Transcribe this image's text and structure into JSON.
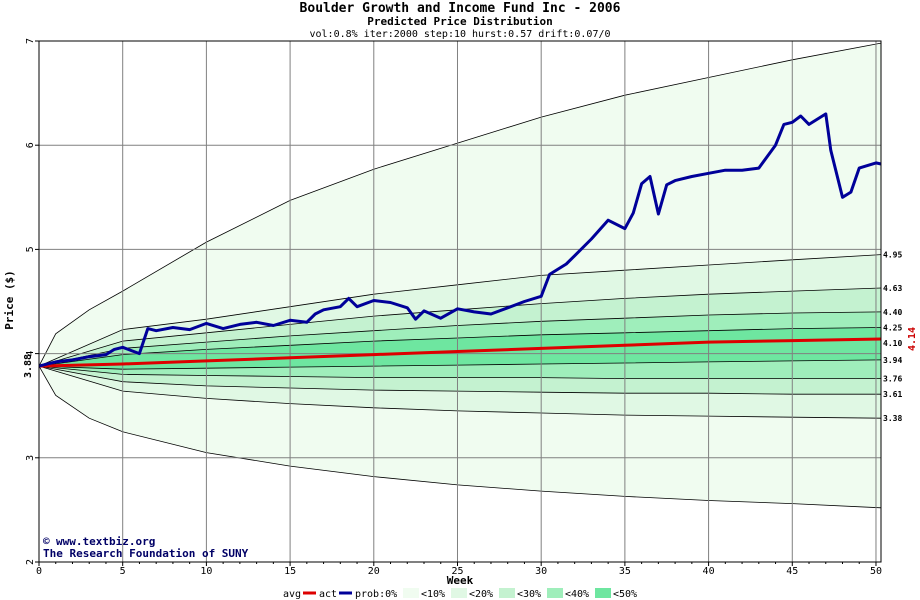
{
  "chart_data": {
    "type": "area",
    "title": "Boulder Growth and Income Fund Inc - 2006",
    "subtitle": "Predicted Price Distribution",
    "params": "vol:0.8% iter:2000 step:10 hurst:0.57 drift:0.07/0",
    "xlabel": "Week",
    "ylabel": "Price ($)",
    "xlim": [
      0,
      50.3
    ],
    "ylim": [
      2,
      7
    ],
    "x_ticks": [
      0,
      5,
      10,
      15,
      20,
      25,
      30,
      35,
      40,
      45,
      50
    ],
    "y_ticks": [
      2,
      3,
      4,
      5,
      6,
      7
    ],
    "grid": true,
    "start_price": "3.88",
    "last_value": "4.14",
    "end_levels": [
      "4.95",
      "4.63",
      "4.40",
      "4.25",
      "4.10",
      "3.94",
      "3.76",
      "3.61",
      "3.38"
    ],
    "bands": [
      {
        "name": "<10%",
        "color": "#f0fcf0",
        "upper": [
          [
            0,
            3.88
          ],
          [
            1,
            4.19
          ],
          [
            3,
            4.42
          ],
          [
            5,
            4.6
          ],
          [
            10,
            5.07
          ],
          [
            15,
            5.47
          ],
          [
            20,
            5.77
          ],
          [
            25,
            6.02
          ],
          [
            30,
            6.27
          ],
          [
            35,
            6.48
          ],
          [
            40,
            6.65
          ],
          [
            45,
            6.82
          ],
          [
            50.3,
            6.98
          ]
        ],
        "lower": [
          [
            0,
            3.88
          ],
          [
            1,
            3.6
          ],
          [
            3,
            3.38
          ],
          [
            5,
            3.25
          ],
          [
            10,
            3.05
          ],
          [
            15,
            2.92
          ],
          [
            20,
            2.82
          ],
          [
            25,
            2.74
          ],
          [
            30,
            2.68
          ],
          [
            35,
            2.63
          ],
          [
            40,
            2.59
          ],
          [
            45,
            2.56
          ],
          [
            50.3,
            2.52
          ]
        ]
      },
      {
        "name": "<20%",
        "color": "#e0f8e4",
        "upper": [
          [
            0,
            3.88
          ],
          [
            5,
            4.23
          ],
          [
            10,
            4.33
          ],
          [
            15,
            4.45
          ],
          [
            20,
            4.57
          ],
          [
            25,
            4.66
          ],
          [
            30,
            4.75
          ],
          [
            35,
            4.8
          ],
          [
            40,
            4.85
          ],
          [
            45,
            4.9
          ],
          [
            50.3,
            4.95
          ]
        ],
        "lower": [
          [
            0,
            3.88
          ],
          [
            5,
            3.64
          ],
          [
            10,
            3.57
          ],
          [
            15,
            3.52
          ],
          [
            20,
            3.48
          ],
          [
            25,
            3.45
          ],
          [
            30,
            3.43
          ],
          [
            35,
            3.41
          ],
          [
            40,
            3.4
          ],
          [
            45,
            3.39
          ],
          [
            50.3,
            3.38
          ]
        ]
      },
      {
        "name": "<30%",
        "color": "#c4f2d0",
        "upper": [
          [
            0,
            3.88
          ],
          [
            5,
            4.12
          ],
          [
            10,
            4.2
          ],
          [
            15,
            4.28
          ],
          [
            20,
            4.36
          ],
          [
            25,
            4.42
          ],
          [
            30,
            4.48
          ],
          [
            35,
            4.53
          ],
          [
            40,
            4.57
          ],
          [
            45,
            4.6
          ],
          [
            50.3,
            4.63
          ]
        ],
        "lower": [
          [
            0,
            3.88
          ],
          [
            5,
            3.73
          ],
          [
            10,
            3.69
          ],
          [
            15,
            3.67
          ],
          [
            20,
            3.65
          ],
          [
            25,
            3.64
          ],
          [
            30,
            3.63
          ],
          [
            35,
            3.62
          ],
          [
            40,
            3.62
          ],
          [
            45,
            3.61
          ],
          [
            50.3,
            3.61
          ]
        ]
      },
      {
        "name": "<40%",
        "color": "#9feebb",
        "upper": [
          [
            0,
            3.88
          ],
          [
            5,
            4.05
          ],
          [
            10,
            4.11
          ],
          [
            15,
            4.17
          ],
          [
            20,
            4.22
          ],
          [
            25,
            4.27
          ],
          [
            30,
            4.31
          ],
          [
            35,
            4.34
          ],
          [
            40,
            4.37
          ],
          [
            45,
            4.39
          ],
          [
            50.3,
            4.4
          ]
        ],
        "lower": [
          [
            0,
            3.88
          ],
          [
            5,
            3.8
          ],
          [
            10,
            3.79
          ],
          [
            15,
            3.78
          ],
          [
            20,
            3.77
          ],
          [
            25,
            3.77
          ],
          [
            30,
            3.77
          ],
          [
            35,
            3.76
          ],
          [
            40,
            3.76
          ],
          [
            45,
            3.76
          ],
          [
            50.3,
            3.76
          ]
        ]
      },
      {
        "name": "<50%",
        "color": "#6ee6a0",
        "upper": [
          [
            0,
            3.88
          ],
          [
            5,
            3.99
          ],
          [
            10,
            4.04
          ],
          [
            15,
            4.08
          ],
          [
            20,
            4.12
          ],
          [
            25,
            4.15
          ],
          [
            30,
            4.18
          ],
          [
            35,
            4.2
          ],
          [
            40,
            4.22
          ],
          [
            45,
            4.24
          ],
          [
            50.3,
            4.25
          ]
        ],
        "lower": [
          [
            0,
            3.88
          ],
          [
            5,
            3.85
          ],
          [
            10,
            3.86
          ],
          [
            15,
            3.87
          ],
          [
            20,
            3.88
          ],
          [
            25,
            3.89
          ],
          [
            30,
            3.9
          ],
          [
            35,
            3.91
          ],
          [
            40,
            3.92
          ],
          [
            45,
            3.93
          ],
          [
            50.3,
            3.94
          ]
        ]
      }
    ],
    "series": [
      {
        "name": "avg",
        "color": "#dd0000",
        "points": [
          [
            0,
            3.88
          ],
          [
            5,
            3.9
          ],
          [
            10,
            3.93
          ],
          [
            15,
            3.96
          ],
          [
            20,
            3.99
          ],
          [
            25,
            4.02
          ],
          [
            30,
            4.05
          ],
          [
            35,
            4.08
          ],
          [
            40,
            4.11
          ],
          [
            45,
            4.125
          ],
          [
            50.3,
            4.14
          ]
        ]
      },
      {
        "name": "act",
        "color": "#000099",
        "points": [
          [
            0,
            3.88
          ],
          [
            1,
            3.92
          ],
          [
            2,
            3.94
          ],
          [
            3,
            3.97
          ],
          [
            4,
            3.99
          ],
          [
            4.5,
            4.04
          ],
          [
            5,
            4.06
          ],
          [
            5.5,
            4.03
          ],
          [
            6,
            4.0
          ],
          [
            6.5,
            4.24
          ],
          [
            7,
            4.22
          ],
          [
            8,
            4.25
          ],
          [
            9,
            4.23
          ],
          [
            10,
            4.29
          ],
          [
            11,
            4.24
          ],
          [
            12,
            4.28
          ],
          [
            13,
            4.3
          ],
          [
            14,
            4.27
          ],
          [
            15,
            4.32
          ],
          [
            16,
            4.3
          ],
          [
            16.5,
            4.38
          ],
          [
            17,
            4.42
          ],
          [
            18,
            4.45
          ],
          [
            18.5,
            4.53
          ],
          [
            19,
            4.45
          ],
          [
            20,
            4.51
          ],
          [
            21,
            4.49
          ],
          [
            22,
            4.44
          ],
          [
            22.5,
            4.33
          ],
          [
            23,
            4.41
          ],
          [
            24,
            4.34
          ],
          [
            25,
            4.43
          ],
          [
            26,
            4.4
          ],
          [
            27,
            4.38
          ],
          [
            28,
            4.44
          ],
          [
            29,
            4.5
          ],
          [
            30,
            4.55
          ],
          [
            30.5,
            4.76
          ],
          [
            31.5,
            4.86
          ],
          [
            32,
            4.94
          ],
          [
            33,
            5.1
          ],
          [
            34,
            5.28
          ],
          [
            35,
            5.2
          ],
          [
            35.5,
            5.35
          ],
          [
            36,
            5.63
          ],
          [
            36.5,
            5.7
          ],
          [
            37,
            5.34
          ],
          [
            37.5,
            5.62
          ],
          [
            38,
            5.66
          ],
          [
            39,
            5.7
          ],
          [
            40,
            5.73
          ],
          [
            41,
            5.76
          ],
          [
            42,
            5.76
          ],
          [
            43,
            5.78
          ],
          [
            44,
            6.0
          ],
          [
            44.5,
            6.2
          ],
          [
            45,
            6.22
          ],
          [
            45.5,
            6.28
          ],
          [
            46,
            6.2
          ],
          [
            47,
            6.3
          ],
          [
            47.3,
            5.95
          ],
          [
            48,
            5.5
          ],
          [
            48.5,
            5.55
          ],
          [
            49,
            5.78
          ],
          [
            50,
            5.83
          ],
          [
            50.3,
            5.82
          ]
        ]
      }
    ],
    "legend": {
      "avg_label": "avg",
      "act_label": "act",
      "prob_label": "prob:0%",
      "entries": [
        "<10%",
        "<20%",
        "<30%",
        "<40%",
        "<50%"
      ],
      "colors": [
        "#f0fcf0",
        "#e0f8e4",
        "#c4f2d0",
        "#9feebb",
        "#6ee6a0"
      ]
    }
  },
  "credits": {
    "copyright_symbol": "©",
    "website": "www.textbiz.org",
    "organization": "The Research Foundation of SUNY"
  }
}
